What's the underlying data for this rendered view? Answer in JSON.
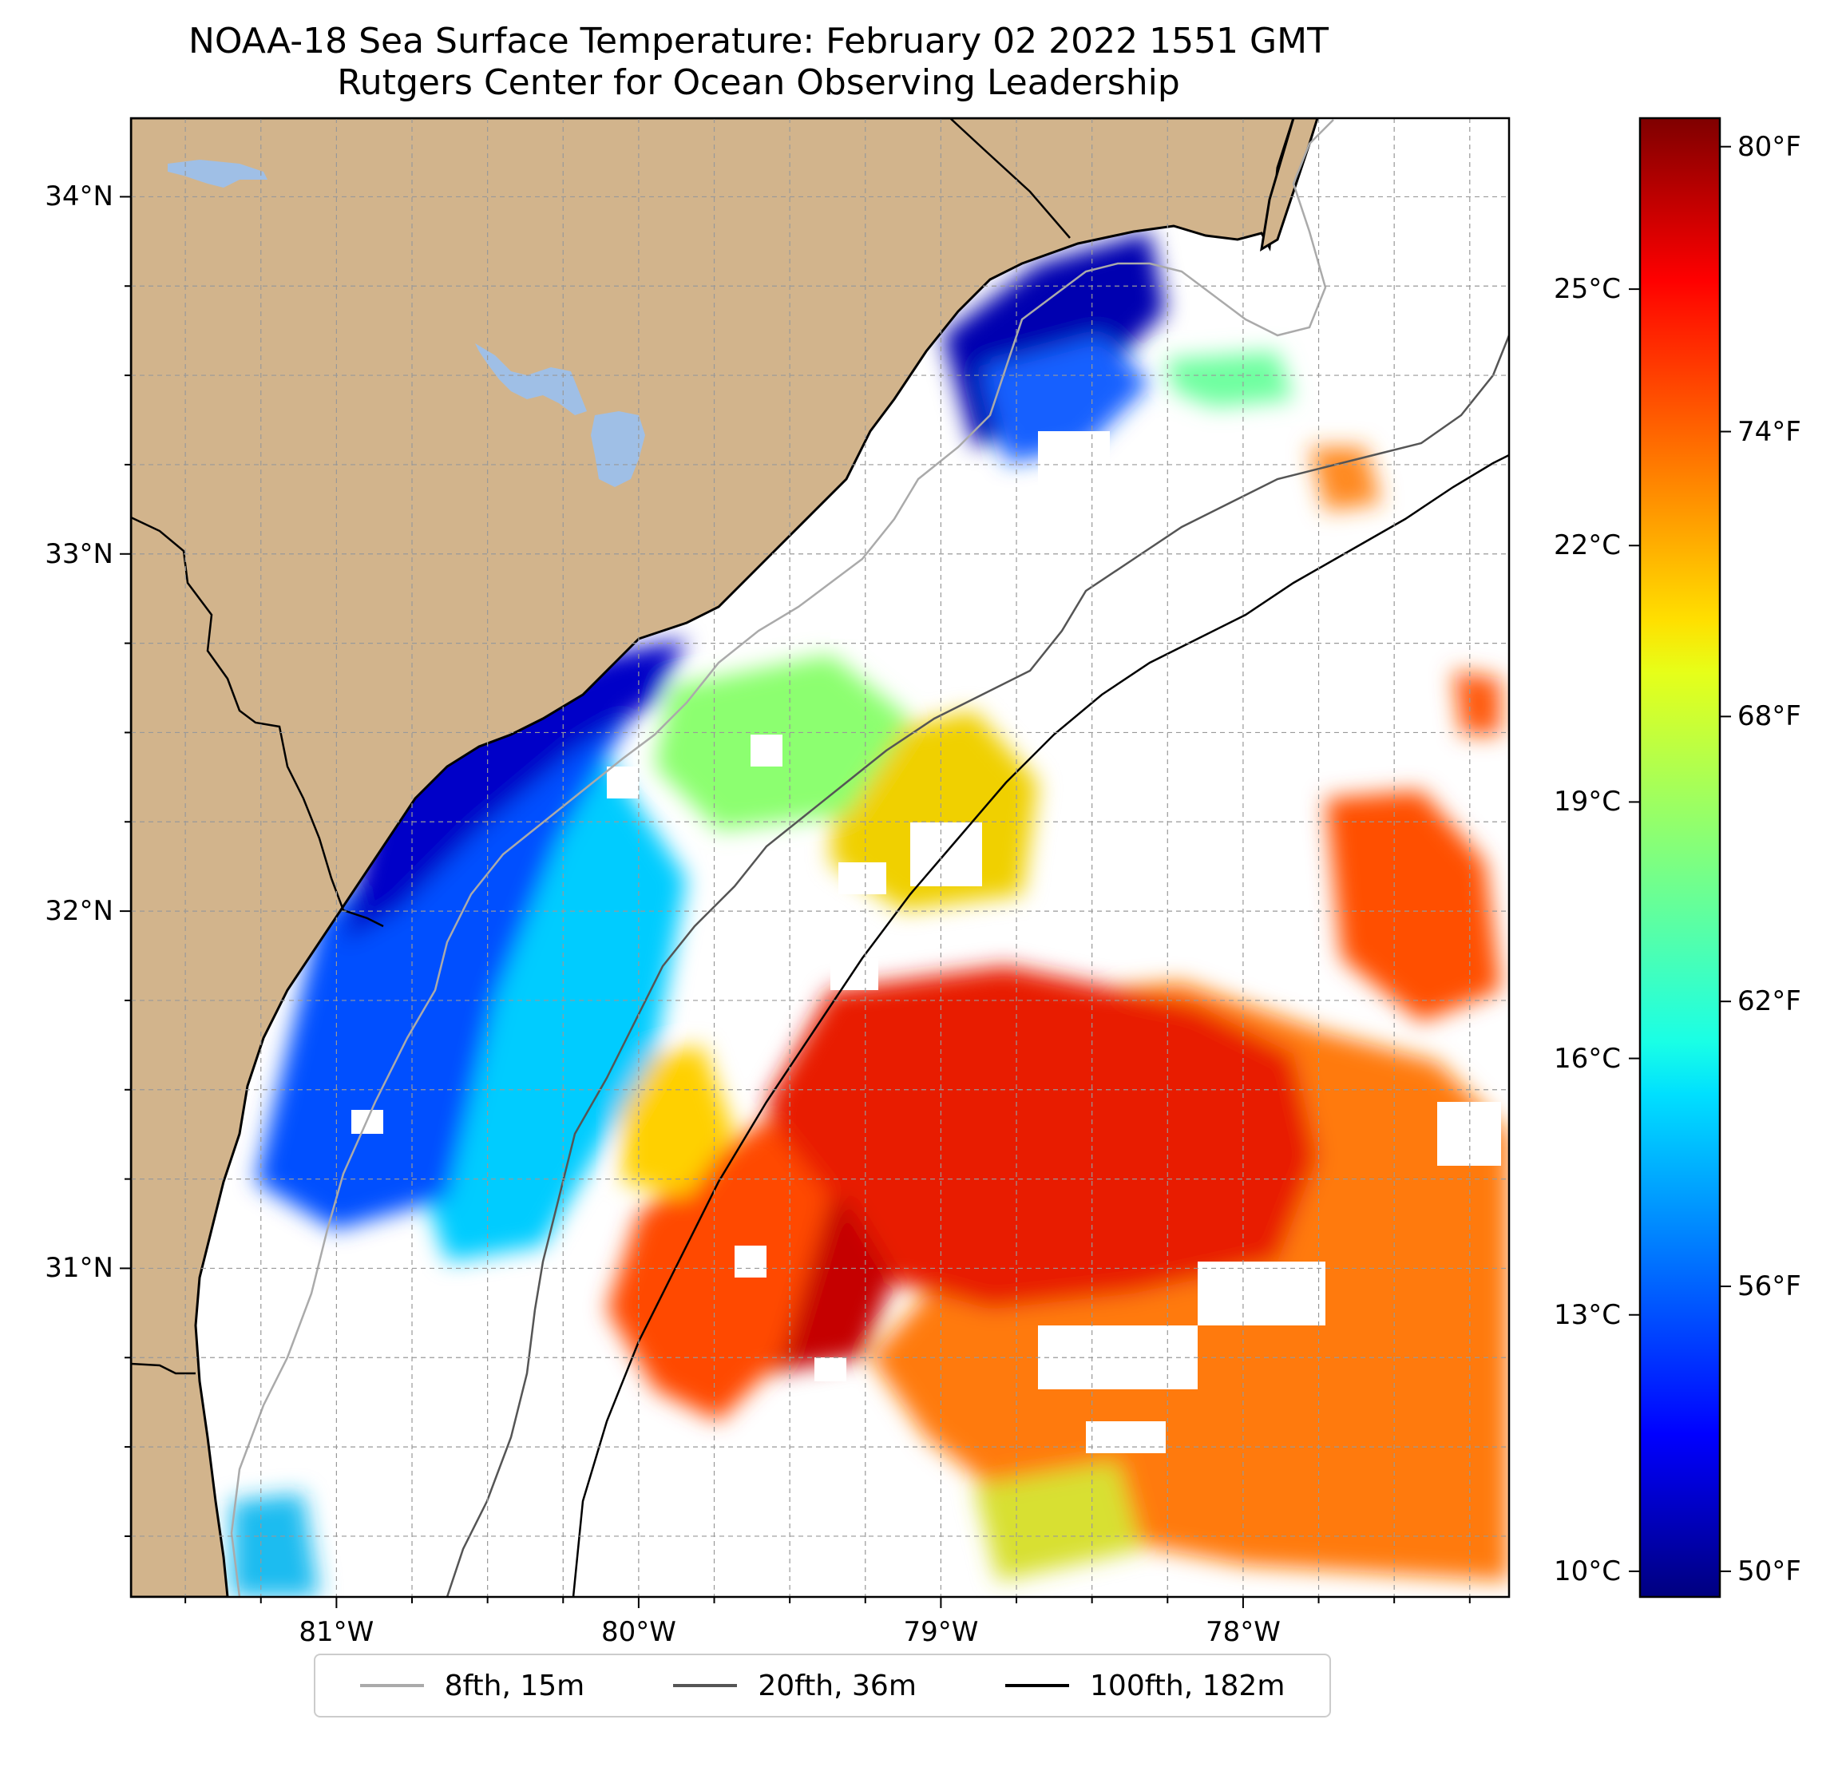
{
  "title": {
    "line1": "NOAA-18 Sea Surface Temperature: February 02 2022 1551 GMT",
    "line2": "Rutgers Center for Ocean Observing Leadership"
  },
  "map": {
    "lon_range": [
      -81.68,
      -77.12
    ],
    "lat_range": [
      30.08,
      34.22
    ],
    "longitude_ticks": [
      {
        "value": -81,
        "label": "81°W"
      },
      {
        "value": -80,
        "label": "80°W"
      },
      {
        "value": -79,
        "label": "79°W"
      },
      {
        "value": -78,
        "label": "78°W"
      }
    ],
    "latitude_ticks": [
      {
        "value": 34,
        "label": "34°N"
      },
      {
        "value": 33,
        "label": "33°N"
      },
      {
        "value": 32,
        "label": "32°N"
      },
      {
        "value": 31,
        "label": "31°N"
      }
    ],
    "gridlines": "dashed, 0.25° spacing",
    "colors": {
      "land": "#d2b48c",
      "lakes": "#9fbfe6",
      "coastline": "#000000",
      "no_data": "#ffffff"
    }
  },
  "colorbar": {
    "colormap": "jet",
    "range_celsius": [
      9.7,
      27.0
    ],
    "celsius_ticks": [
      {
        "value": 10,
        "label": "10°C"
      },
      {
        "value": 13,
        "label": "13°C"
      },
      {
        "value": 16,
        "label": "16°C"
      },
      {
        "value": 19,
        "label": "19°C"
      },
      {
        "value": 22,
        "label": "22°C"
      },
      {
        "value": 25,
        "label": "25°C"
      }
    ],
    "fahrenheit_ticks": [
      {
        "value": 50,
        "label": "50°F"
      },
      {
        "value": 56,
        "label": "56°F"
      },
      {
        "value": 62,
        "label": "62°F"
      },
      {
        "value": 68,
        "label": "68°F"
      },
      {
        "value": 74,
        "label": "74°F"
      },
      {
        "value": 80,
        "label": "80°F"
      }
    ]
  },
  "legend": {
    "items": [
      {
        "label": "8fth, 15m",
        "color": "#aaaaaa"
      },
      {
        "label": "20fth, 36m",
        "color": "#555555"
      },
      {
        "label": "100fth, 182m",
        "color": "#000000"
      }
    ]
  }
}
